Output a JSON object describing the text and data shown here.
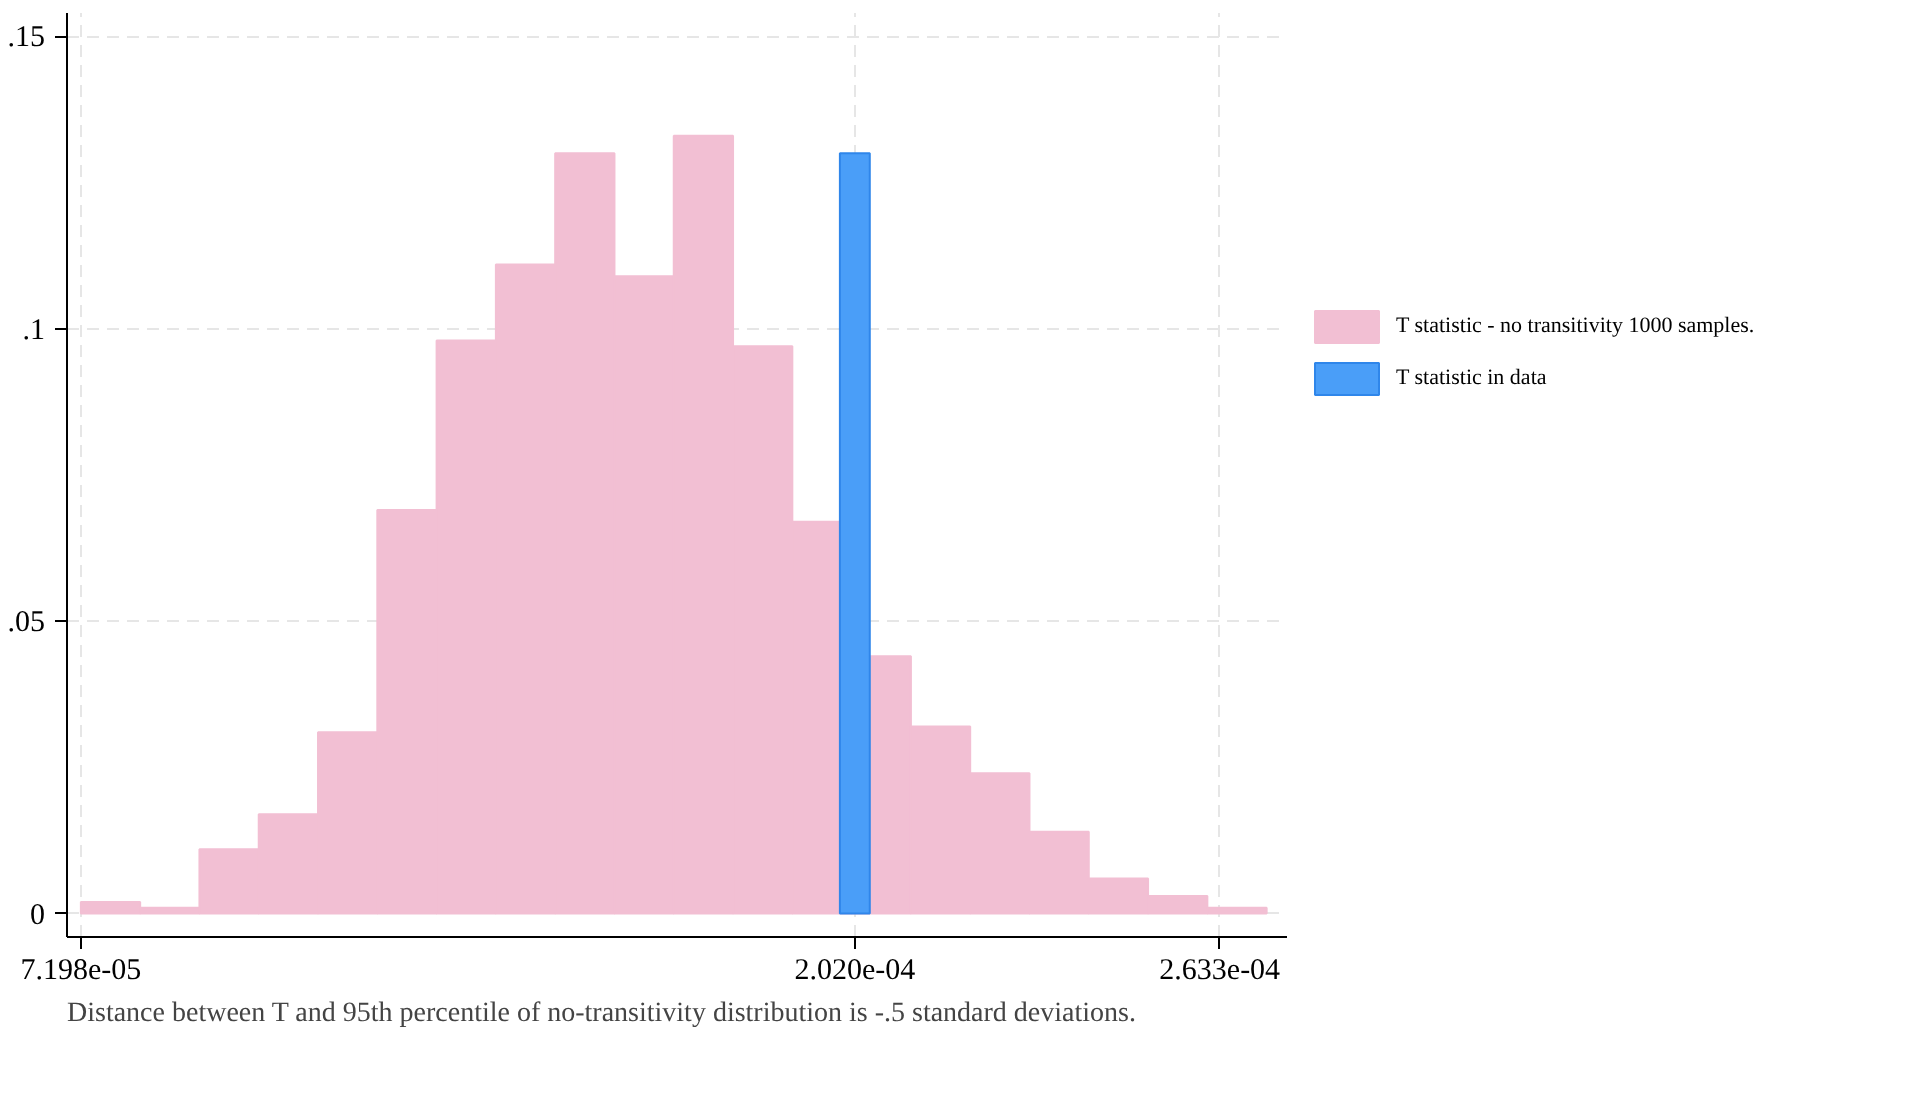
{
  "chart_data": {
    "type": "histogram",
    "xlim": [
      6.965e-05,
      0.0002746
    ],
    "ylim": [
      -0.004,
      0.154
    ],
    "xticks": [
      {
        "value": 7.198e-05,
        "label": "7.198e-05"
      },
      {
        "value": 0.000202,
        "label": "2.020e-04"
      },
      {
        "value": 0.0002633,
        "label": "2.633e-04"
      }
    ],
    "yticks": [
      0,
      {
        "value": 0.05,
        "label": ".05"
      },
      {
        "value": 0.1,
        "label": ".1"
      },
      {
        "value": 0.15,
        "label": ".15"
      }
    ],
    "grid": true,
    "legend": "right",
    "bins": [
      7.198e-05,
      8.194e-05,
      9.19e-05,
      0.00010186,
      0.00011182,
      0.00012178,
      0.00013174,
      0.0001417,
      0.00015166,
      0.00016162,
      0.00017158,
      0.00018154,
      0.0001915,
      0.00020146,
      0.00021142,
      0.00022138,
      0.00023134,
      0.0002413,
      0.00025126,
      0.00026122,
      0.00027118
    ],
    "series": [
      {
        "name": "T statistic - no transitivity 1000 samples.",
        "color": "#f2bfd3",
        "values": [
          0.002,
          0.001,
          0.011,
          0.017,
          0.031,
          0.069,
          0.098,
          0.111,
          0.13,
          0.109,
          0.133,
          0.097,
          0.067,
          0.044,
          0.032,
          0.024,
          0.014,
          0.006,
          0.003,
          0.001
        ]
      },
      {
        "name": "T statistic in data",
        "type": "bar",
        "color": "#4a9ef8",
        "x": [
          0.000202
        ],
        "values": [
          0.13
        ]
      }
    ],
    "annotations": [
      "Distance between T and 95th percentile of no-transitivity distribution is -.5 standard deviations."
    ]
  }
}
